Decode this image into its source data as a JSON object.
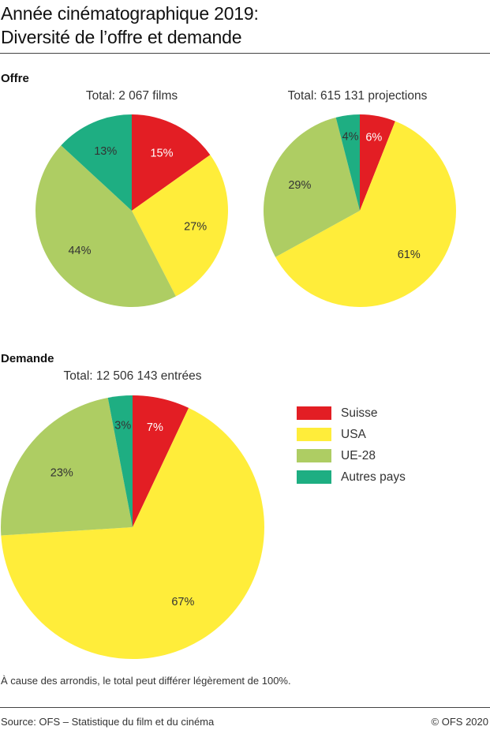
{
  "title": {
    "line1": "Année cinématographique 2019:",
    "line2": "Diversité de l’offre et demande"
  },
  "sections": {
    "offre": "Offre",
    "demande": "Demande"
  },
  "legend": [
    {
      "label": "Suisse",
      "color": "#E31E24"
    },
    {
      "label": "USA",
      "color": "#FFED3A"
    },
    {
      "label": "UE-28",
      "color": "#AECD63"
    },
    {
      "label": "Autres pays",
      "color": "#1EAE82"
    }
  ],
  "note": "À cause des arrondis, le total peut différer légèrement de 100%.",
  "footer": {
    "source": "Source: OFS – Statistique du film et du cinéma",
    "copyright": "© OFS 2020"
  },
  "chart_data": [
    {
      "type": "pie",
      "section": "Offre",
      "title": "Total: 2 067 films",
      "categories": [
        "Suisse",
        "USA",
        "UE-28",
        "Autres pays"
      ],
      "values": [
        15,
        27,
        44,
        13
      ],
      "labels": [
        "15%",
        "27%",
        "44%",
        "13%"
      ],
      "unit": "%"
    },
    {
      "type": "pie",
      "section": "Offre",
      "title": "Total: 615 131 projections",
      "categories": [
        "Suisse",
        "USA",
        "UE-28",
        "Autres pays"
      ],
      "values": [
        6,
        61,
        29,
        4
      ],
      "labels": [
        "6%",
        "61%",
        "29%",
        "4%"
      ],
      "unit": "%"
    },
    {
      "type": "pie",
      "section": "Demande",
      "title": "Total: 12 506 143 entrées",
      "categories": [
        "Suisse",
        "USA",
        "UE-28",
        "Autres pays"
      ],
      "values": [
        7,
        67,
        23,
        3
      ],
      "labels": [
        "7%",
        "67%",
        "23%",
        "3%"
      ],
      "unit": "%"
    }
  ]
}
